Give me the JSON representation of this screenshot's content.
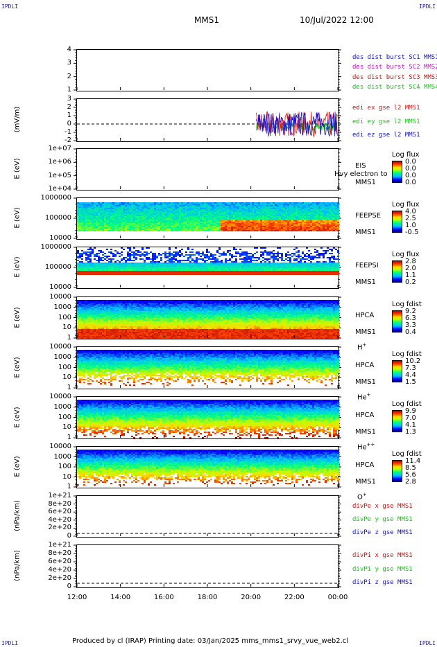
{
  "corners": {
    "tl": "IPDLI",
    "tr": "IPDLI",
    "bl": "IPDLI",
    "br": "IPDLI"
  },
  "header": {
    "title": "MMS1",
    "datetime": "10/Jul/2022 12:00"
  },
  "footer": {
    "text": "Produced by cl (IRAP)   Printing date: 03/Jan/2025   mms_mms1_srvy_vue_web2.cl"
  },
  "colors": {
    "blue": "#1414c8",
    "magenta": "#c814c8",
    "red": "#d21414",
    "green": "#14c814"
  },
  "chart_data": [
    {
      "type": "line",
      "yticks": [
        "4",
        "3",
        "2",
        "1"
      ],
      "ylim": [
        1,
        4
      ],
      "legend": [
        "des dist burst SC1 MMS1",
        "des dist burst SC2 MMS2",
        "des dist burst SC3 MMS3",
        "des dist burst SC4 MMS4"
      ]
    },
    {
      "type": "line",
      "ylabel": "(mV/m)",
      "yticks": [
        "3",
        "2",
        "1",
        "0",
        "-1",
        "-2"
      ],
      "ylim": [
        -2,
        3
      ],
      "legend": [
        "edi ex gse l2 MMS1",
        "edi ey gse l2 MMS1",
        "edi ez gse l2 MMS1"
      ],
      "series": [
        {
          "name": "edi ex gse l2 MMS1",
          "x_range": [
            "20:15",
            "00:00"
          ],
          "amplitude": 1.5
        },
        {
          "name": "edi ey gse l2 MMS1",
          "x_range": [
            "20:15",
            "00:00"
          ],
          "amplitude": 0.5
        },
        {
          "name": "edi ez gse l2 MMS1",
          "x_range": [
            "20:15",
            "00:00"
          ],
          "amplitude": 1.5
        }
      ]
    },
    {
      "type": "heatmap",
      "ylabel": "E (eV)",
      "yticks": [
        "1e+07",
        "1e+06",
        "1e+05",
        "1e+04"
      ],
      "log": true,
      "instrument": [
        "EIS",
        "MMS1"
      ],
      "overlay": "Hvy electron to",
      "colorbar_title": "Log flux",
      "colorbar_ticks": [
        "0.0",
        "0.0",
        "0.0",
        "0.0"
      ]
    },
    {
      "type": "heatmap",
      "ylabel": "E (eV)",
      "yticks": [
        "1000000",
        "100000",
        "10000"
      ],
      "log": true,
      "instrument": [
        "FEEPSE",
        "MMS1"
      ],
      "colorbar_title": "Log flux",
      "colorbar_ticks": [
        "4.0",
        "2.5",
        "1.0",
        "-0.5"
      ]
    },
    {
      "type": "heatmap",
      "ylabel": "E (eV)",
      "yticks": [
        "1000000",
        "100000",
        "10000"
      ],
      "log": true,
      "instrument": [
        "FEEPSI",
        "MMS1"
      ],
      "colorbar_title": "Log flux",
      "colorbar_ticks": [
        "2.8",
        "2.0",
        "1.1",
        "0.2"
      ]
    },
    {
      "type": "heatmap",
      "ylabel": "E (eV)",
      "yticks": [
        "10000",
        "1000",
        "100",
        "10",
        "1"
      ],
      "log": true,
      "instrument": [
        "HPCA",
        "MMS1"
      ],
      "species": "H",
      "charge": "+",
      "colorbar_title": "Log fdist",
      "colorbar_ticks": [
        "9.2",
        "6.3",
        "3.3",
        "0.4"
      ]
    },
    {
      "type": "heatmap",
      "ylabel": "E (eV)",
      "yticks": [
        "10000",
        "1000",
        "100",
        "10",
        "1"
      ],
      "log": true,
      "instrument": [
        "HPCA",
        "MMS1"
      ],
      "species": "He",
      "charge": "+",
      "colorbar_title": "Log fdist",
      "colorbar_ticks": [
        "10.2",
        "7.3",
        "4.4",
        "1.5"
      ]
    },
    {
      "type": "heatmap",
      "ylabel": "E (eV)",
      "yticks": [
        "10000",
        "1000",
        "100",
        "10",
        "1"
      ],
      "log": true,
      "instrument": [
        "HPCA",
        "MMS1"
      ],
      "species": "He",
      "charge": "++",
      "colorbar_title": "Log fdist",
      "colorbar_ticks": [
        "9.9",
        "7.0",
        "4.1",
        "1.3"
      ]
    },
    {
      "type": "heatmap",
      "ylabel": "E (eV)",
      "yticks": [
        "10000",
        "1000",
        "100",
        "10",
        "1"
      ],
      "log": true,
      "instrument": [
        "HPCA",
        "MMS1"
      ],
      "species": "O",
      "charge": "+",
      "colorbar_title": "Log fdist",
      "colorbar_ticks": [
        "11.4",
        "8.5",
        "5.6",
        "2.8"
      ]
    },
    {
      "type": "line",
      "ylabel": "(nPa/km)",
      "yticks": [
        "1e+21",
        "8e+20",
        "6e+20",
        "4e+20",
        "2e+20",
        "0"
      ],
      "ylim": [
        0,
        1e+21
      ],
      "legend": [
        "divPe x gse MMS1",
        "divPe y gse MMS1",
        "divPe z gse MMS1"
      ]
    },
    {
      "type": "line",
      "ylabel": "(nPa/km)",
      "yticks": [
        "1e+21",
        "8e+20",
        "6e+20",
        "4e+20",
        "2e+20",
        "0"
      ],
      "ylim": [
        0,
        1e+21
      ],
      "legend": [
        "divPi x gse MMS1",
        "divPi y gse MMS1",
        "divPi z gse MMS1"
      ]
    }
  ],
  "xaxis": {
    "ticks": [
      "12:00",
      "14:00",
      "16:00",
      "18:00",
      "20:00",
      "22:00",
      "00:00"
    ]
  }
}
